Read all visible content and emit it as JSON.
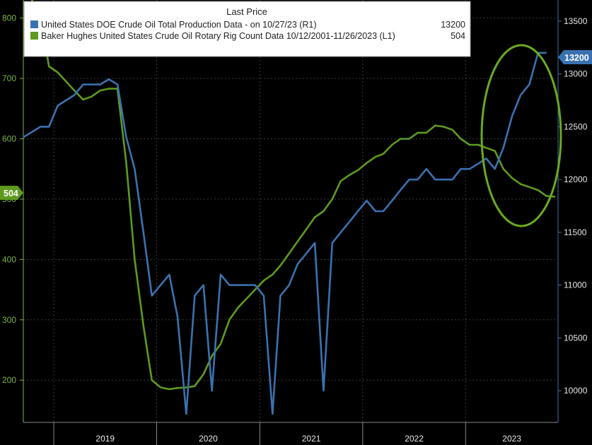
{
  "legend": {
    "title": "Last Price",
    "entries": [
      {
        "label": "United States DOE Crude Oil Total Production Data -  on 10/27/23  (R1)",
        "value": "13200",
        "color": "#3a72b0"
      },
      {
        "label": "Baker Hughes United States Crude Oil Rotary Rig Count Data 10/12/2001-11/26/2023  (L1)",
        "value": "504",
        "color": "#5e9a1e"
      }
    ]
  },
  "tags": {
    "left": "504",
    "right": "13200"
  },
  "chart_data": {
    "type": "line",
    "x_labels": [
      "2019",
      "2020",
      "2021",
      "2022",
      "2023"
    ],
    "left_axis": {
      "ticks": [
        "200",
        "300",
        "400",
        "500",
        "600",
        "700",
        "800"
      ],
      "range": [
        130,
        830
      ]
    },
    "right_axis": {
      "ticks": [
        "10000",
        "10500",
        "11000",
        "11500",
        "12000",
        "12500",
        "13000",
        "13500"
      ],
      "range": [
        9700,
        13700
      ]
    },
    "grid": true,
    "legend_position": "top-left",
    "annotation": "green ellipse highlighting 2023 divergence",
    "series": [
      {
        "name": "United States DOE Crude Oil Total Production Data",
        "axis": "right",
        "color": "#3a72b0",
        "x": [
          "2018-09",
          "2018-11",
          "2018-12",
          "2019-01",
          "2019-03",
          "2019-04",
          "2019-05",
          "2019-06",
          "2019-07",
          "2019-08",
          "2019-09",
          "2019-10",
          "2019-11",
          "2019-12",
          "2020-01",
          "2020-02",
          "2020-03",
          "2020-04",
          "2020-05",
          "2020-06",
          "2020-07",
          "2020-08",
          "2020-09",
          "2020-10",
          "2020-11",
          "2020-12",
          "2021-01",
          "2021-02",
          "2021-03",
          "2021-04",
          "2021-05",
          "2021-06",
          "2021-07",
          "2021-08",
          "2021-09",
          "2021-10",
          "2021-11",
          "2021-12",
          "2022-01",
          "2022-02",
          "2022-03",
          "2022-04",
          "2022-05",
          "2022-06",
          "2022-07",
          "2022-08",
          "2022-09",
          "2022-10",
          "2022-11",
          "2022-12",
          "2023-01",
          "2023-02",
          "2023-03",
          "2023-04",
          "2023-05",
          "2023-06",
          "2023-07",
          "2023-08",
          "2023-09",
          "2023-10"
        ],
        "values": [
          12400,
          12500,
          12500,
          12700,
          12800,
          12900,
          12900,
          12900,
          12950,
          12900,
          12400,
          12100,
          11500,
          10900,
          11000,
          11100,
          10700,
          9780,
          10900,
          11000,
          10000,
          11100,
          11000,
          11000,
          11000,
          11000,
          10900,
          9780,
          10900,
          11000,
          11200,
          11300,
          11400,
          10000,
          11400,
          11500,
          11600,
          11700,
          11800,
          11700,
          11700,
          11800,
          11900,
          12000,
          12000,
          12100,
          12000,
          12000,
          12000,
          12100,
          12100,
          12150,
          12200,
          12100,
          12300,
          12600,
          12800,
          12900,
          13200,
          13200
        ]
      },
      {
        "name": "Baker Hughes United States Crude Oil Rotary Rig Count Data",
        "axis": "left",
        "color": "#5e9a1e",
        "x": [
          "2018-09",
          "2018-11",
          "2018-12",
          "2019-01",
          "2019-03",
          "2019-04",
          "2019-05",
          "2019-06",
          "2019-07",
          "2019-08",
          "2019-09",
          "2019-10",
          "2019-11",
          "2019-12",
          "2020-01",
          "2020-02",
          "2020-03",
          "2020-04",
          "2020-05",
          "2020-06",
          "2020-07",
          "2020-08",
          "2020-09",
          "2020-10",
          "2020-11",
          "2020-12",
          "2021-01",
          "2021-02",
          "2021-03",
          "2021-04",
          "2021-05",
          "2021-06",
          "2021-07",
          "2021-08",
          "2021-09",
          "2021-10",
          "2021-11",
          "2021-12",
          "2022-01",
          "2022-02",
          "2022-03",
          "2022-04",
          "2022-05",
          "2022-06",
          "2022-07",
          "2022-08",
          "2022-09",
          "2022-10",
          "2022-11",
          "2022-12",
          "2023-01",
          "2023-02",
          "2023-03",
          "2023-04",
          "2023-05",
          "2023-06",
          "2023-07",
          "2023-08",
          "2023-09",
          "2023-10",
          "2023-11"
        ],
        "values": [
          860,
          800,
          720,
          710,
          680,
          665,
          670,
          680,
          683,
          683,
          560,
          400,
          290,
          200,
          188,
          185,
          187,
          188,
          190,
          210,
          240,
          260,
          300,
          320,
          335,
          350,
          365,
          375,
          390,
          410,
          430,
          450,
          470,
          480,
          500,
          530,
          540,
          548,
          560,
          570,
          575,
          590,
          600,
          600,
          610,
          610,
          622,
          620,
          615,
          600,
          590,
          590,
          585,
          580,
          550,
          535,
          525,
          520,
          515,
          505,
          504
        ]
      }
    ]
  }
}
